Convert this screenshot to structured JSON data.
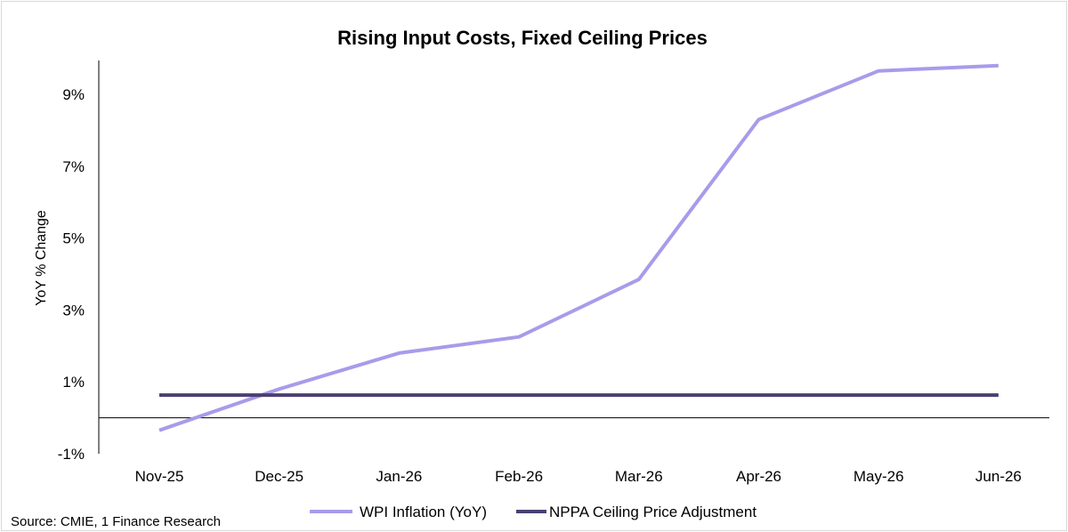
{
  "chart_data": {
    "type": "line",
    "title": "Rising Input Costs, Fixed Ceiling Prices",
    "ylabel": "YoY % Change",
    "xlabel": "",
    "categories": [
      "Nov-25",
      "Dec-25",
      "Jan-26",
      "Feb-26",
      "Mar-26",
      "Apr-26",
      "May-26",
      "Jun-26"
    ],
    "yticks": [
      "-1%",
      "1%",
      "3%",
      "5%",
      "7%",
      "9%"
    ],
    "ylim": [
      -1,
      10
    ],
    "series": [
      {
        "name": "WPI Inflation (YoY)",
        "color": "#a99bea",
        "values": [
          -0.35,
          0.8,
          1.8,
          2.25,
          3.85,
          8.3,
          9.65,
          9.8
        ]
      },
      {
        "name": "NPPA Ceiling Price Adjustment",
        "color": "#4b3f72",
        "values": [
          0.63,
          0.63,
          0.63,
          0.63,
          0.63,
          0.63,
          0.63,
          0.63
        ]
      }
    ],
    "legend_position": "bottom",
    "grid": false,
    "source": "Source: CMIE, 1 Finance Research"
  }
}
